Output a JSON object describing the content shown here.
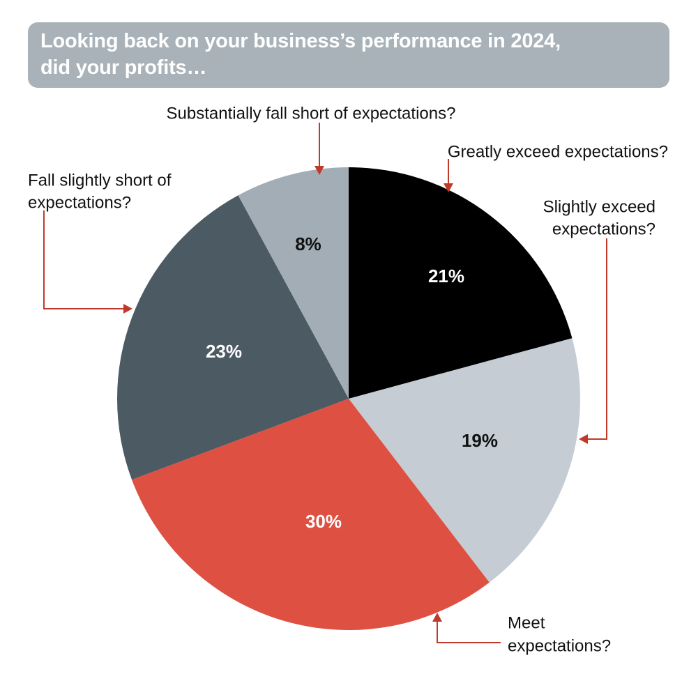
{
  "title": {
    "line1": "Looking back on your business’s performance in 2024,",
    "line2": "did your profits…"
  },
  "colors": {
    "title_bg": "#a9b2b8",
    "leader": "#c0392b"
  },
  "chart_data": {
    "type": "pie",
    "title": "Looking back on your business’s performance in 2024, did your profits…",
    "start": "12 o'clock, clockwise",
    "slices": [
      {
        "label": [
          "Greatly exceed expectations?"
        ],
        "value": 21,
        "display": "21%",
        "color": "#000000",
        "text_color": "#ffffff"
      },
      {
        "label": [
          "Slightly exceed",
          "expectations?"
        ],
        "value": 19,
        "display": "19%",
        "color": "#c5ccd3",
        "text_color": "#111111"
      },
      {
        "label": [
          "Meet",
          "expectations?"
        ],
        "value": 30,
        "display": "30%",
        "color": "#de5041",
        "text_color": "#ffffff"
      },
      {
        "label": [
          "Fall slightly short of",
          "expectations?"
        ],
        "value": 23,
        "display": "23%",
        "color": "#4c5a64",
        "text_color": "#ffffff"
      },
      {
        "label": [
          "Substantially fall short of expectations?"
        ],
        "value": 8,
        "display": "8%",
        "color": "#a3adb5",
        "text_color": "#111111"
      }
    ]
  }
}
